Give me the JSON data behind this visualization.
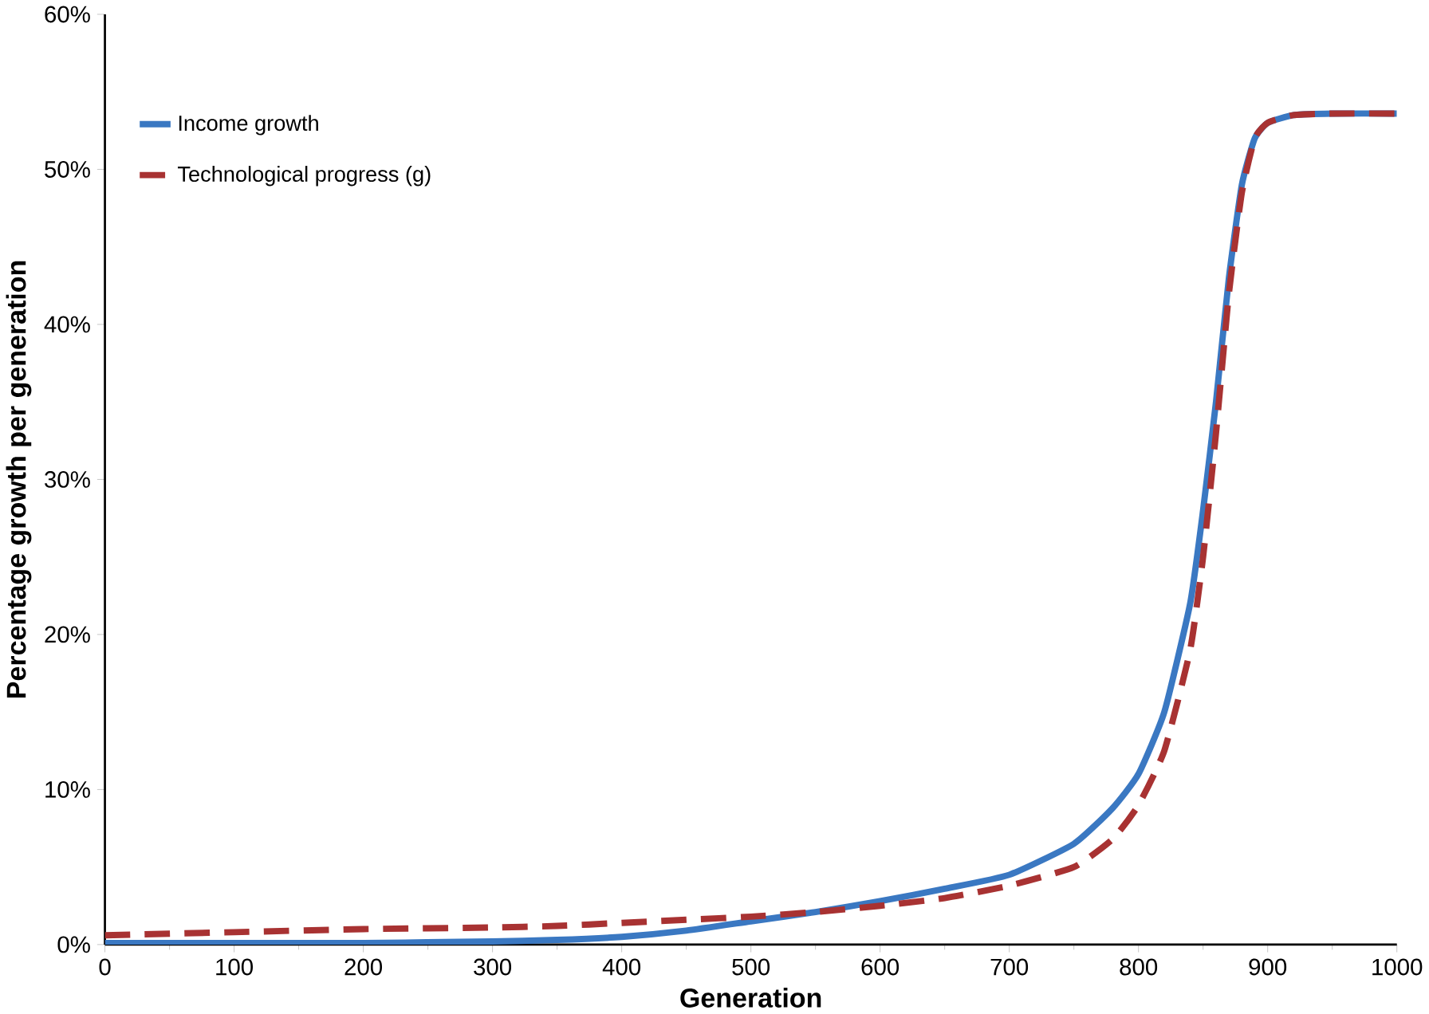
{
  "chart_data": {
    "type": "line",
    "xlabel": "Generation",
    "ylabel": "Percentage growth per generation",
    "x": [
      0,
      100,
      200,
      300,
      350,
      400,
      450,
      500,
      550,
      600,
      650,
      700,
      750,
      780,
      800,
      820,
      840,
      850,
      860,
      870,
      880,
      890,
      900,
      920,
      950,
      1000
    ],
    "series": [
      {
        "name": "Income growth",
        "color": "#3a78c2",
        "line_style": "solid",
        "values": [
          0.1,
          0.1,
          0.1,
          0.2,
          0.3,
          0.5,
          0.9,
          1.5,
          2.1,
          2.8,
          3.6,
          4.5,
          6.5,
          8.8,
          11,
          15,
          22,
          28,
          35,
          43,
          49,
          52,
          53,
          53.5,
          53.6,
          53.6
        ]
      },
      {
        "name": "Technological progress (g)",
        "color": "#a83232",
        "line_style": "dashed",
        "values": [
          0.6,
          0.8,
          1.0,
          1.1,
          1.2,
          1.4,
          1.6,
          1.8,
          2.1,
          2.5,
          3.0,
          3.8,
          5.0,
          6.8,
          9,
          12.5,
          19,
          25,
          33,
          42,
          48.5,
          52,
          53,
          53.5,
          53.6,
          53.6
        ]
      }
    ],
    "xlim": [
      0,
      1000
    ],
    "ylim": [
      0,
      60
    ],
    "xticks": [
      0,
      100,
      200,
      300,
      400,
      500,
      600,
      700,
      800,
      900,
      1000
    ],
    "yticks": [
      {
        "value": 0,
        "label": "0%"
      },
      {
        "value": 10,
        "label": "10%"
      },
      {
        "value": 20,
        "label": "20%"
      },
      {
        "value": 30,
        "label": "30%"
      },
      {
        "value": 40,
        "label": "40%"
      },
      {
        "value": 50,
        "label": "50%"
      },
      {
        "value": 60,
        "label": "60%"
      }
    ],
    "legend": "top left",
    "grid": false
  }
}
